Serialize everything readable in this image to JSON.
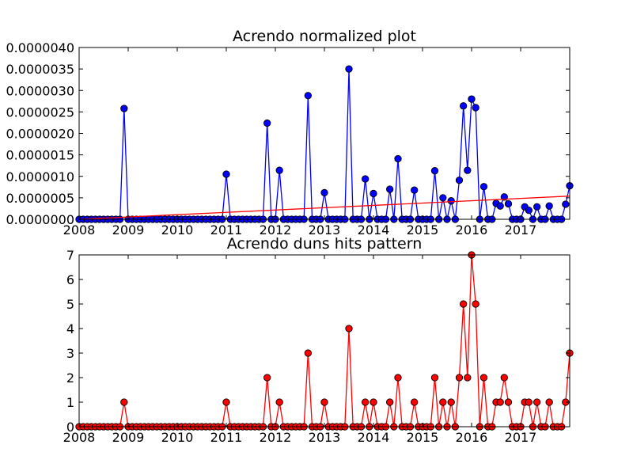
{
  "chart_data": [
    {
      "type": "line",
      "title": "Acrendo normalized plot",
      "xlabel": "",
      "ylabel": "",
      "xlim": [
        "2008-01",
        "2017-12"
      ],
      "ylim": [
        0,
        4e-06
      ],
      "x_ticks": [
        "2008",
        "2009",
        "2010",
        "2011",
        "2012",
        "2013",
        "2014",
        "2015",
        "2016",
        "2017"
      ],
      "y_ticks": [
        "0.0000000",
        "0.0000005",
        "0.0000010",
        "0.0000015",
        "0.0000020",
        "0.0000025",
        "0.0000030",
        "0.0000035",
        "0.0000040"
      ],
      "grid": false,
      "series": [
        {
          "color": "#0000ff",
          "marker": "circle",
          "points": [
            [
              "2008-01",
              0
            ],
            [
              "2008-02",
              0
            ],
            [
              "2008-03",
              0
            ],
            [
              "2008-04",
              0
            ],
            [
              "2008-05",
              0
            ],
            [
              "2008-06",
              0
            ],
            [
              "2008-07",
              0
            ],
            [
              "2008-08",
              0
            ],
            [
              "2008-09",
              0
            ],
            [
              "2008-10",
              0
            ],
            [
              "2008-11",
              0
            ],
            [
              "2008-12",
              2.58e-06
            ],
            [
              "2009-01",
              0
            ],
            [
              "2009-02",
              0
            ],
            [
              "2009-03",
              0
            ],
            [
              "2009-04",
              0
            ],
            [
              "2009-05",
              0
            ],
            [
              "2009-06",
              0
            ],
            [
              "2009-07",
              0
            ],
            [
              "2009-08",
              0
            ],
            [
              "2009-09",
              0
            ],
            [
              "2009-10",
              0
            ],
            [
              "2009-11",
              0
            ],
            [
              "2009-12",
              0
            ],
            [
              "2010-01",
              0
            ],
            [
              "2010-02",
              0
            ],
            [
              "2010-03",
              0
            ],
            [
              "2010-04",
              0
            ],
            [
              "2010-05",
              0
            ],
            [
              "2010-06",
              0
            ],
            [
              "2010-07",
              0
            ],
            [
              "2010-08",
              0
            ],
            [
              "2010-09",
              0
            ],
            [
              "2010-10",
              0
            ],
            [
              "2010-11",
              0
            ],
            [
              "2010-12",
              0
            ],
            [
              "2011-01",
              1.05e-06
            ],
            [
              "2011-02",
              0
            ],
            [
              "2011-03",
              0
            ],
            [
              "2011-04",
              0
            ],
            [
              "2011-05",
              0
            ],
            [
              "2011-06",
              0
            ],
            [
              "2011-07",
              0
            ],
            [
              "2011-08",
              0
            ],
            [
              "2011-09",
              0
            ],
            [
              "2011-10",
              0
            ],
            [
              "2011-11",
              2.24e-06
            ],
            [
              "2011-12",
              0
            ],
            [
              "2012-01",
              0
            ],
            [
              "2012-02",
              1.14e-06
            ],
            [
              "2012-03",
              0
            ],
            [
              "2012-04",
              0
            ],
            [
              "2012-05",
              0
            ],
            [
              "2012-06",
              0
            ],
            [
              "2012-07",
              0
            ],
            [
              "2012-08",
              0
            ],
            [
              "2012-09",
              2.88e-06
            ],
            [
              "2012-10",
              0
            ],
            [
              "2012-11",
              0
            ],
            [
              "2012-12",
              0
            ],
            [
              "2013-01",
              6.2e-07
            ],
            [
              "2013-02",
              0
            ],
            [
              "2013-03",
              0
            ],
            [
              "2013-04",
              0
            ],
            [
              "2013-05",
              0
            ],
            [
              "2013-06",
              0
            ],
            [
              "2013-07",
              3.5e-06
            ],
            [
              "2013-08",
              0
            ],
            [
              "2013-09",
              0
            ],
            [
              "2013-10",
              0
            ],
            [
              "2013-11",
              9.4e-07
            ],
            [
              "2013-12",
              0
            ],
            [
              "2014-01",
              6e-07
            ],
            [
              "2014-02",
              0
            ],
            [
              "2014-03",
              0
            ],
            [
              "2014-04",
              0
            ],
            [
              "2014-05",
              7e-07
            ],
            [
              "2014-06",
              0
            ],
            [
              "2014-07",
              1.41e-06
            ],
            [
              "2014-08",
              0
            ],
            [
              "2014-09",
              0
            ],
            [
              "2014-10",
              0
            ],
            [
              "2014-11",
              6.8e-07
            ],
            [
              "2014-12",
              0
            ],
            [
              "2015-01",
              0
            ],
            [
              "2015-02",
              0
            ],
            [
              "2015-03",
              0
            ],
            [
              "2015-04",
              1.13e-06
            ],
            [
              "2015-05",
              0
            ],
            [
              "2015-06",
              5e-07
            ],
            [
              "2015-07",
              0
            ],
            [
              "2015-08",
              4.3e-07
            ],
            [
              "2015-09",
              0
            ],
            [
              "2015-10",
              9.1e-07
            ],
            [
              "2015-11",
              2.64e-06
            ],
            [
              "2015-12",
              1.14e-06
            ],
            [
              "2016-01",
              2.8e-06
            ],
            [
              "2016-02",
              2.6e-06
            ],
            [
              "2016-03",
              0
            ],
            [
              "2016-04",
              7.6e-07
            ],
            [
              "2016-05",
              0
            ],
            [
              "2016-06",
              0
            ],
            [
              "2016-07",
              3.7e-07
            ],
            [
              "2016-08",
              3.1e-07
            ],
            [
              "2016-09",
              5.2e-07
            ],
            [
              "2016-10",
              3.6e-07
            ],
            [
              "2016-11",
              0
            ],
            [
              "2016-12",
              0
            ],
            [
              "2017-01",
              0
            ],
            [
              "2017-02",
              2.9e-07
            ],
            [
              "2017-03",
              2.1e-07
            ],
            [
              "2017-04",
              0
            ],
            [
              "2017-05",
              2.9e-07
            ],
            [
              "2017-06",
              0
            ],
            [
              "2017-07",
              0
            ],
            [
              "2017-08",
              3.1e-07
            ],
            [
              "2017-09",
              0
            ],
            [
              "2017-10",
              0
            ],
            [
              "2017-11",
              0
            ],
            [
              "2017-12",
              3.5e-07
            ],
            [
              "2018-01",
              7.8e-07
            ]
          ]
        },
        {
          "type": "trend-line",
          "color": "#ff0000",
          "points": [
            [
              "2008-01",
              0
            ],
            [
              "2018-01",
              5.4e-07
            ]
          ]
        }
      ]
    },
    {
      "type": "line",
      "title": "Acrendo duns hits pattern",
      "xlabel": "",
      "ylabel": "",
      "xlim": [
        "2008-01",
        "2017-12"
      ],
      "ylim": [
        0,
        7
      ],
      "x_ticks": [
        "2008",
        "2009",
        "2010",
        "2011",
        "2012",
        "2013",
        "2014",
        "2015",
        "2016",
        "2017"
      ],
      "y_ticks": [
        "0",
        "1",
        "2",
        "3",
        "4",
        "5",
        "6",
        "7"
      ],
      "grid": false,
      "series": [
        {
          "color": "#ff0000",
          "marker": "circle",
          "points": [
            [
              "2008-01",
              0
            ],
            [
              "2008-02",
              0
            ],
            [
              "2008-03",
              0
            ],
            [
              "2008-04",
              0
            ],
            [
              "2008-05",
              0
            ],
            [
              "2008-06",
              0
            ],
            [
              "2008-07",
              0
            ],
            [
              "2008-08",
              0
            ],
            [
              "2008-09",
              0
            ],
            [
              "2008-10",
              0
            ],
            [
              "2008-11",
              0
            ],
            [
              "2008-12",
              1
            ],
            [
              "2009-01",
              0
            ],
            [
              "2009-02",
              0
            ],
            [
              "2009-03",
              0
            ],
            [
              "2009-04",
              0
            ],
            [
              "2009-05",
              0
            ],
            [
              "2009-06",
              0
            ],
            [
              "2009-07",
              0
            ],
            [
              "2009-08",
              0
            ],
            [
              "2009-09",
              0
            ],
            [
              "2009-10",
              0
            ],
            [
              "2009-11",
              0
            ],
            [
              "2009-12",
              0
            ],
            [
              "2010-01",
              0
            ],
            [
              "2010-02",
              0
            ],
            [
              "2010-03",
              0
            ],
            [
              "2010-04",
              0
            ],
            [
              "2010-05",
              0
            ],
            [
              "2010-06",
              0
            ],
            [
              "2010-07",
              0
            ],
            [
              "2010-08",
              0
            ],
            [
              "2010-09",
              0
            ],
            [
              "2010-10",
              0
            ],
            [
              "2010-11",
              0
            ],
            [
              "2010-12",
              0
            ],
            [
              "2011-01",
              1
            ],
            [
              "2011-02",
              0
            ],
            [
              "2011-03",
              0
            ],
            [
              "2011-04",
              0
            ],
            [
              "2011-05",
              0
            ],
            [
              "2011-06",
              0
            ],
            [
              "2011-07",
              0
            ],
            [
              "2011-08",
              0
            ],
            [
              "2011-09",
              0
            ],
            [
              "2011-10",
              0
            ],
            [
              "2011-11",
              2
            ],
            [
              "2011-12",
              0
            ],
            [
              "2012-01",
              0
            ],
            [
              "2012-02",
              1
            ],
            [
              "2012-03",
              0
            ],
            [
              "2012-04",
              0
            ],
            [
              "2012-05",
              0
            ],
            [
              "2012-06",
              0
            ],
            [
              "2012-07",
              0
            ],
            [
              "2012-08",
              0
            ],
            [
              "2012-09",
              3
            ],
            [
              "2012-10",
              0
            ],
            [
              "2012-11",
              0
            ],
            [
              "2012-12",
              0
            ],
            [
              "2013-01",
              1
            ],
            [
              "2013-02",
              0
            ],
            [
              "2013-03",
              0
            ],
            [
              "2013-04",
              0
            ],
            [
              "2013-05",
              0
            ],
            [
              "2013-06",
              0
            ],
            [
              "2013-07",
              4
            ],
            [
              "2013-08",
              0
            ],
            [
              "2013-09",
              0
            ],
            [
              "2013-10",
              0
            ],
            [
              "2013-11",
              1
            ],
            [
              "2013-12",
              0
            ],
            [
              "2014-01",
              1
            ],
            [
              "2014-02",
              0
            ],
            [
              "2014-03",
              0
            ],
            [
              "2014-04",
              0
            ],
            [
              "2014-05",
              1
            ],
            [
              "2014-06",
              0
            ],
            [
              "2014-07",
              2
            ],
            [
              "2014-08",
              0
            ],
            [
              "2014-09",
              0
            ],
            [
              "2014-10",
              0
            ],
            [
              "2014-11",
              1
            ],
            [
              "2014-12",
              0
            ],
            [
              "2015-01",
              0
            ],
            [
              "2015-02",
              0
            ],
            [
              "2015-03",
              0
            ],
            [
              "2015-04",
              2
            ],
            [
              "2015-05",
              0
            ],
            [
              "2015-06",
              1
            ],
            [
              "2015-07",
              0
            ],
            [
              "2015-08",
              1
            ],
            [
              "2015-09",
              0
            ],
            [
              "2015-10",
              2
            ],
            [
              "2015-11",
              5
            ],
            [
              "2015-12",
              2
            ],
            [
              "2016-01",
              7
            ],
            [
              "2016-02",
              5
            ],
            [
              "2016-03",
              0
            ],
            [
              "2016-04",
              2
            ],
            [
              "2016-05",
              0
            ],
            [
              "2016-06",
              0
            ],
            [
              "2016-07",
              1
            ],
            [
              "2016-08",
              1
            ],
            [
              "2016-09",
              2
            ],
            [
              "2016-10",
              1
            ],
            [
              "2016-11",
              0
            ],
            [
              "2016-12",
              0
            ],
            [
              "2017-01",
              0
            ],
            [
              "2017-02",
              1
            ],
            [
              "2017-03",
              1
            ],
            [
              "2017-04",
              0
            ],
            [
              "2017-05",
              1
            ],
            [
              "2017-06",
              0
            ],
            [
              "2017-07",
              0
            ],
            [
              "2017-08",
              1
            ],
            [
              "2017-09",
              0
            ],
            [
              "2017-10",
              0
            ],
            [
              "2017-11",
              0
            ],
            [
              "2017-12",
              1
            ],
            [
              "2018-01",
              3
            ]
          ]
        }
      ]
    }
  ]
}
